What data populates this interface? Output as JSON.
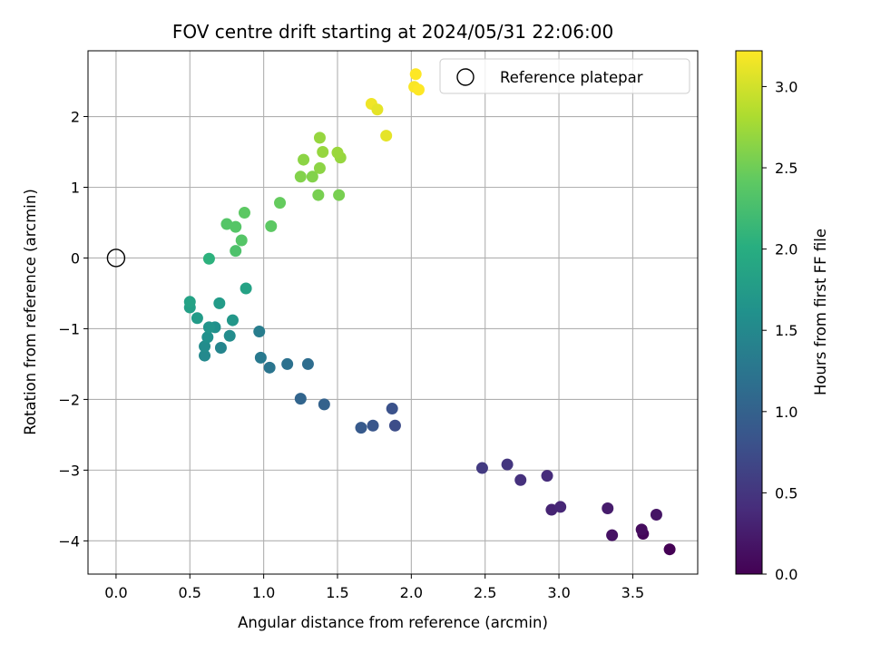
{
  "chart_data": {
    "type": "scatter",
    "title": "FOV centre drift starting at 2024/05/31 22:06:00",
    "xlabel": "Angular distance from reference (arcmin)",
    "ylabel": "Rotation from reference (arcmin)",
    "xlim": [
      -0.19,
      3.94
    ],
    "ylim": [
      -4.47,
      2.93
    ],
    "xticks": [
      0.0,
      0.5,
      1.0,
      1.5,
      2.0,
      2.5,
      3.0,
      3.5
    ],
    "xtick_labels": [
      "0.0",
      "0.5",
      "1.0",
      "1.5",
      "2.0",
      "2.5",
      "3.0",
      "3.5"
    ],
    "yticks": [
      -4,
      -3,
      -2,
      -1,
      0,
      1,
      2
    ],
    "ytick_labels": [
      "−4",
      "−3",
      "−2",
      "−1",
      "0",
      "1",
      "2"
    ],
    "grid": true,
    "legend": {
      "placement": "top-right",
      "entries": [
        "Reference platepar"
      ]
    },
    "reference_point": {
      "x": 0.0,
      "y": 0.0,
      "label": "Reference platepar"
    },
    "colorbar": {
      "label": "Hours from first FF file",
      "colormap": "viridis",
      "range": [
        0.0,
        3.22
      ],
      "ticks": [
        0.0,
        0.5,
        1.0,
        1.5,
        2.0,
        2.5,
        3.0
      ],
      "tick_labels": [
        "0.0",
        "0.5",
        "1.0",
        "1.5",
        "2.0",
        "2.5",
        "3.0"
      ]
    },
    "series": [
      {
        "name": "FOV centre drift",
        "points": [
          {
            "x": 3.75,
            "y": -4.12,
            "hours": 0.0
          },
          {
            "x": 3.57,
            "y": -3.9,
            "hours": 0.05
          },
          {
            "x": 3.56,
            "y": -3.84,
            "hours": 0.1
          },
          {
            "x": 3.36,
            "y": -3.92,
            "hours": 0.15
          },
          {
            "x": 3.66,
            "y": -3.63,
            "hours": 0.18
          },
          {
            "x": 3.33,
            "y": -3.54,
            "hours": 0.25
          },
          {
            "x": 2.95,
            "y": -3.56,
            "hours": 0.32
          },
          {
            "x": 3.01,
            "y": -3.52,
            "hours": 0.35
          },
          {
            "x": 2.92,
            "y": -3.08,
            "hours": 0.4
          },
          {
            "x": 2.74,
            "y": -3.14,
            "hours": 0.45
          },
          {
            "x": 2.65,
            "y": -2.92,
            "hours": 0.5
          },
          {
            "x": 2.48,
            "y": -2.97,
            "hours": 0.55
          },
          {
            "x": 1.89,
            "y": -2.37,
            "hours": 0.75
          },
          {
            "x": 1.87,
            "y": -2.13,
            "hours": 0.8
          },
          {
            "x": 1.74,
            "y": -2.37,
            "hours": 0.85
          },
          {
            "x": 1.66,
            "y": -2.4,
            "hours": 0.9
          },
          {
            "x": 1.41,
            "y": -2.07,
            "hours": 1.0
          },
          {
            "x": 1.25,
            "y": -1.99,
            "hours": 1.05
          },
          {
            "x": 1.3,
            "y": -1.5,
            "hours": 1.15
          },
          {
            "x": 1.16,
            "y": -1.5,
            "hours": 1.2
          },
          {
            "x": 1.04,
            "y": -1.55,
            "hours": 1.25
          },
          {
            "x": 0.98,
            "y": -1.41,
            "hours": 1.3
          },
          {
            "x": 0.97,
            "y": -1.04,
            "hours": 1.35
          },
          {
            "x": 0.71,
            "y": -1.27,
            "hours": 1.45
          },
          {
            "x": 0.6,
            "y": -1.38,
            "hours": 1.5
          },
          {
            "x": 0.6,
            "y": -1.25,
            "hours": 1.55
          },
          {
            "x": 0.77,
            "y": -1.1,
            "hours": 1.55
          },
          {
            "x": 0.62,
            "y": -1.12,
            "hours": 1.6
          },
          {
            "x": 0.67,
            "y": -0.98,
            "hours": 1.6
          },
          {
            "x": 0.63,
            "y": -0.98,
            "hours": 1.65
          },
          {
            "x": 0.79,
            "y": -0.88,
            "hours": 1.7
          },
          {
            "x": 0.55,
            "y": -0.85,
            "hours": 1.75
          },
          {
            "x": 0.7,
            "y": -0.64,
            "hours": 1.75
          },
          {
            "x": 0.5,
            "y": -0.7,
            "hours": 1.8
          },
          {
            "x": 0.5,
            "y": -0.62,
            "hours": 1.85
          },
          {
            "x": 0.88,
            "y": -0.43,
            "hours": 1.85
          },
          {
            "x": 0.63,
            "y": -0.01,
            "hours": 2.05
          },
          {
            "x": 0.81,
            "y": 0.1,
            "hours": 2.3
          },
          {
            "x": 0.85,
            "y": 0.25,
            "hours": 2.35
          },
          {
            "x": 0.81,
            "y": 0.44,
            "hours": 2.35
          },
          {
            "x": 0.75,
            "y": 0.48,
            "hours": 2.35
          },
          {
            "x": 1.05,
            "y": 0.45,
            "hours": 2.4
          },
          {
            "x": 0.87,
            "y": 0.64,
            "hours": 2.4
          },
          {
            "x": 1.11,
            "y": 0.78,
            "hours": 2.45
          },
          {
            "x": 1.37,
            "y": 0.89,
            "hours": 2.55
          },
          {
            "x": 1.51,
            "y": 0.89,
            "hours": 2.55
          },
          {
            "x": 1.25,
            "y": 1.15,
            "hours": 2.6
          },
          {
            "x": 1.33,
            "y": 1.15,
            "hours": 2.6
          },
          {
            "x": 1.38,
            "y": 1.27,
            "hours": 2.65
          },
          {
            "x": 1.27,
            "y": 1.39,
            "hours": 2.65
          },
          {
            "x": 1.52,
            "y": 1.42,
            "hours": 2.7
          },
          {
            "x": 1.4,
            "y": 1.5,
            "hours": 2.7
          },
          {
            "x": 1.5,
            "y": 1.49,
            "hours": 2.72
          },
          {
            "x": 1.38,
            "y": 1.7,
            "hours": 2.7
          },
          {
            "x": 1.83,
            "y": 1.73,
            "hours": 3.1
          },
          {
            "x": 1.73,
            "y": 2.18,
            "hours": 3.15
          },
          {
            "x": 1.77,
            "y": 2.1,
            "hours": 3.1
          },
          {
            "x": 2.02,
            "y": 2.42,
            "hours": 3.2
          },
          {
            "x": 2.05,
            "y": 2.38,
            "hours": 3.22
          },
          {
            "x": 2.03,
            "y": 2.6,
            "hours": 3.22
          }
        ]
      }
    ]
  }
}
